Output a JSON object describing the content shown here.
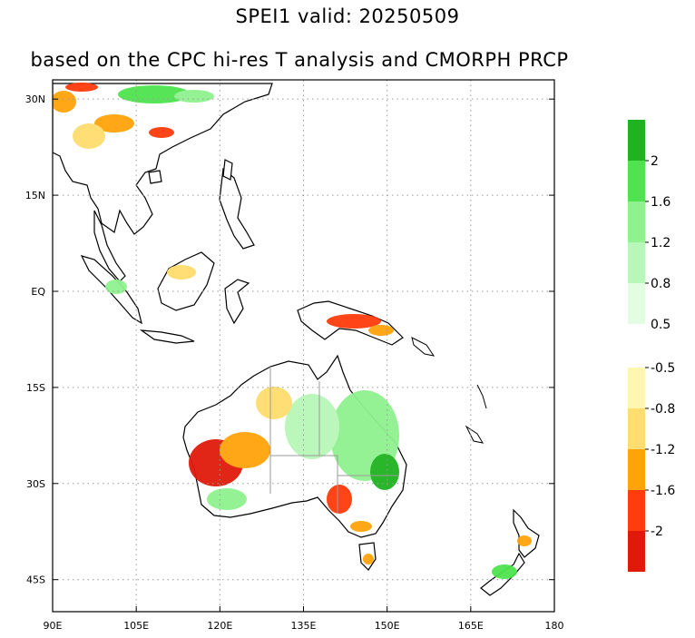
{
  "title": "SPEI1   valid: 20250509",
  "subtitle": "based on the CPC hi-res T analysis and CMORPH PRCP",
  "map": {
    "lon_range": [
      90,
      180
    ],
    "lat_range": [
      -50,
      33
    ],
    "lon_ticks": [
      {
        "value": 90,
        "label": "90E"
      },
      {
        "value": 105,
        "label": "105E"
      },
      {
        "value": 120,
        "label": "120E"
      },
      {
        "value": 135,
        "label": "135E"
      },
      {
        "value": 150,
        "label": "150E"
      },
      {
        "value": 165,
        "label": "165E"
      },
      {
        "value": 180,
        "label": "180"
      }
    ],
    "lat_ticks": [
      {
        "value": 30,
        "label": "30N"
      },
      {
        "value": 15,
        "label": "15N"
      },
      {
        "value": 0,
        "label": "EQ"
      },
      {
        "value": -15,
        "label": "15S"
      },
      {
        "value": -30,
        "label": "30S"
      },
      {
        "value": -45,
        "label": "45S"
      }
    ],
    "grid": "dotted"
  },
  "colorbar": {
    "wet": [
      {
        "color": "#1fb31f",
        "upper_label": ""
      },
      {
        "color": "#4fe34f",
        "upper_label": "2"
      },
      {
        "color": "#8ff28f",
        "upper_label": "1.6"
      },
      {
        "color": "#b8f7b8",
        "upper_label": "1.2"
      },
      {
        "color": "#e3fde3",
        "upper_label": "0.8"
      }
    ],
    "wet_bottom_label": "0.5",
    "dry": [
      {
        "color": "#fff6b0",
        "upper_label": "-0.5"
      },
      {
        "color": "#ffdd6e",
        "upper_label": "-0.8"
      },
      {
        "color": "#ffa30a",
        "upper_label": "-1.2"
      },
      {
        "color": "#ff3c0c",
        "upper_label": "-1.6"
      },
      {
        "color": "#e01a0a",
        "upper_label": "-2"
      }
    ]
  },
  "colors": {
    "land_outline": "#000000",
    "borders": "#9a9a9a",
    "grid": "#9a9a9a"
  }
}
